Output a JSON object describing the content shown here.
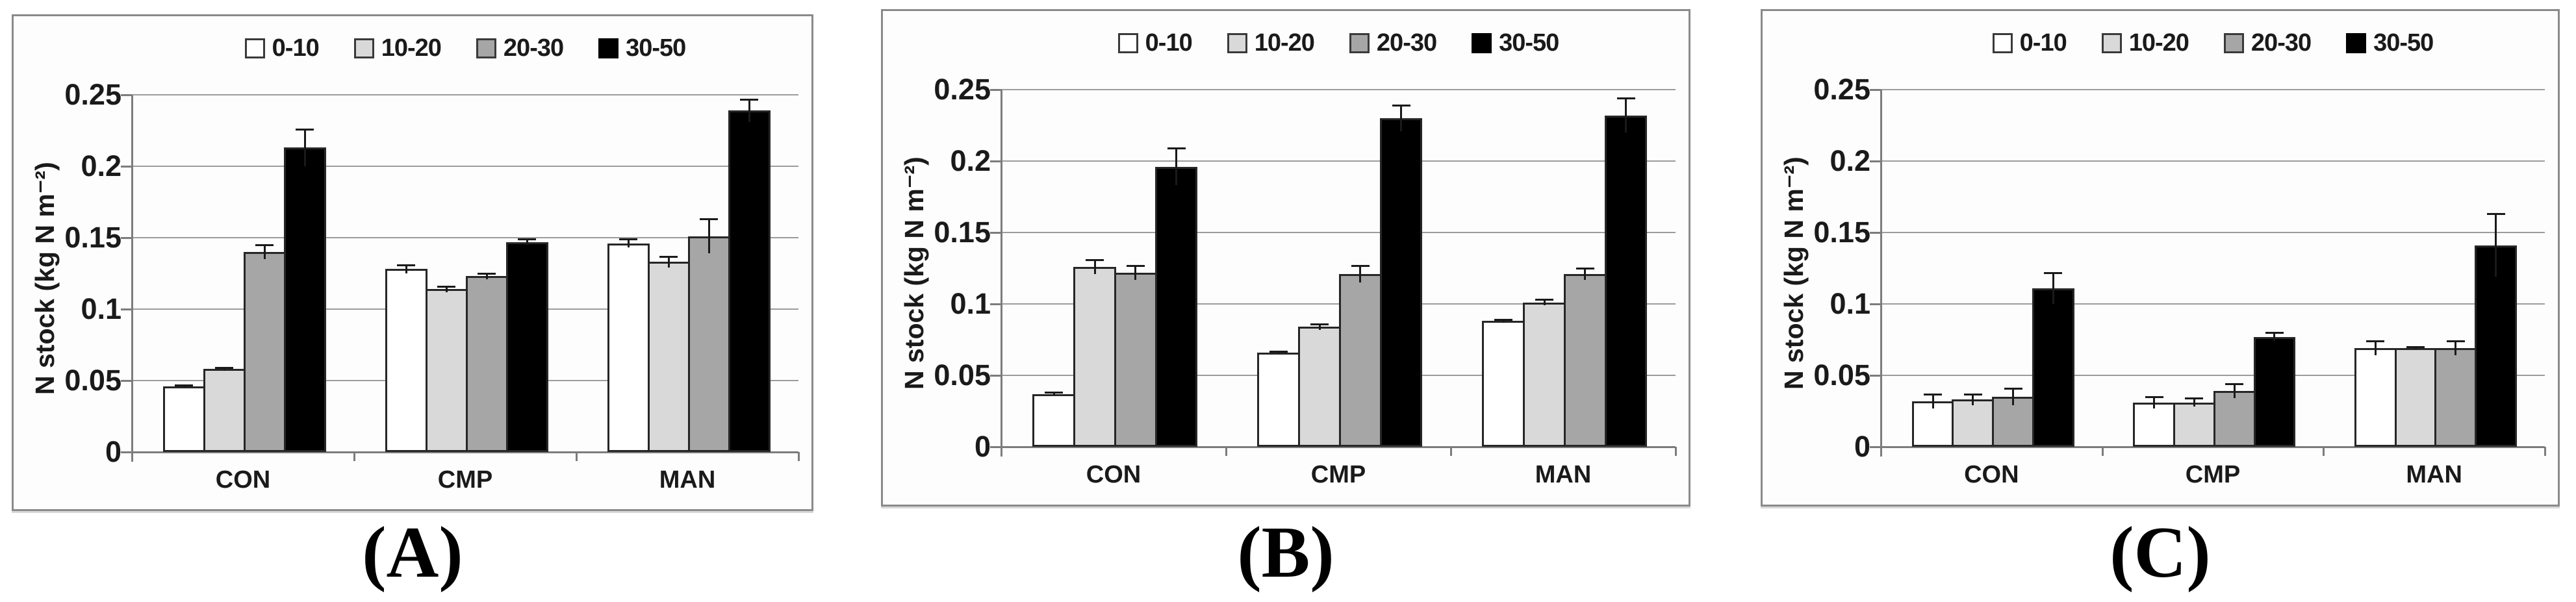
{
  "figure": {
    "background": "#ffffff",
    "text_color": "#1a1a1a",
    "panel_border_color": "#8a8a8a",
    "gridline_color": "#9c9c9c",
    "axis_color": "#7c7c7c",
    "bar_border_color": "#262626",
    "error_bar_color": "#1a1a1a"
  },
  "chart_data": [
    {
      "type": "bar",
      "panel_label": "(A)",
      "ylabel": "N stock (kg N m⁻²)",
      "categories": [
        "CON",
        "CMP",
        "MAN"
      ],
      "ylim": [
        0,
        0.25
      ],
      "ytick_values": [
        0,
        0.05,
        0.1,
        0.15,
        0.2,
        0.25
      ],
      "ytick_labels": [
        "0",
        "0.05",
        "0.1",
        "0.15",
        "0.2",
        "0.25"
      ],
      "grid": true,
      "legend_position": "top",
      "legend": [
        "0-10",
        "10-20",
        "20-30",
        "30-50"
      ],
      "series": [
        {
          "name": "0-10",
          "color": "#ffffff",
          "values": [
            0.046,
            0.128,
            0.146
          ],
          "errors": [
            0.001,
            0.003,
            0.003
          ]
        },
        {
          "name": "10-20",
          "color": "#d9d9d9",
          "values": [
            0.058,
            0.114,
            0.133
          ],
          "errors": [
            0.001,
            0.002,
            0.004
          ]
        },
        {
          "name": "20-30",
          "color": "#a6a6a6",
          "values": [
            0.14,
            0.123,
            0.151
          ],
          "errors": [
            0.005,
            0.002,
            0.012
          ]
        },
        {
          "name": "30-50",
          "color": "#000000",
          "values": [
            0.213,
            0.147,
            0.239
          ],
          "errors": [
            0.013,
            0.002,
            0.008
          ]
        }
      ]
    },
    {
      "type": "bar",
      "panel_label": "(B)",
      "ylabel": "N stock (kg N m⁻²)",
      "categories": [
        "CON",
        "CMP",
        "MAN"
      ],
      "ylim": [
        0,
        0.25
      ],
      "ytick_values": [
        0,
        0.05,
        0.1,
        0.15,
        0.2,
        0.25
      ],
      "ytick_labels": [
        "0",
        "0.05",
        "0.1",
        "0.15",
        "0.2",
        "0.25"
      ],
      "grid": true,
      "legend_position": "top",
      "legend": [
        "0-10",
        "10-20",
        "20-30",
        "30-50"
      ],
      "series": [
        {
          "name": "0-10",
          "color": "#ffffff",
          "values": [
            0.037,
            0.066,
            0.088
          ],
          "errors": [
            0.001,
            0.001,
            0.001
          ]
        },
        {
          "name": "10-20",
          "color": "#d9d9d9",
          "values": [
            0.126,
            0.084,
            0.101
          ],
          "errors": [
            0.005,
            0.002,
            0.002
          ]
        },
        {
          "name": "20-30",
          "color": "#a6a6a6",
          "values": [
            0.122,
            0.121,
            0.121
          ],
          "errors": [
            0.005,
            0.006,
            0.004
          ]
        },
        {
          "name": "30-50",
          "color": "#000000",
          "values": [
            0.196,
            0.23,
            0.232
          ],
          "errors": [
            0.013,
            0.009,
            0.012
          ]
        }
      ]
    },
    {
      "type": "bar",
      "panel_label": "(C)",
      "ylabel": "N stock (kg N m⁻²)",
      "categories": [
        "CON",
        "CMP",
        "MAN"
      ],
      "ylim": [
        0,
        0.25
      ],
      "ytick_values": [
        0,
        0.05,
        0.1,
        0.15,
        0.2,
        0.25
      ],
      "ytick_labels": [
        "0",
        "0.05",
        "0.1",
        "0.15",
        "0.2",
        "0.25"
      ],
      "grid": true,
      "legend_position": "top",
      "legend": [
        "0-10",
        "10-20",
        "20-30",
        "30-50"
      ],
      "series": [
        {
          "name": "0-10",
          "color": "#ffffff",
          "values": [
            0.032,
            0.031,
            0.069
          ],
          "errors": [
            0.005,
            0.004,
            0.005
          ]
        },
        {
          "name": "10-20",
          "color": "#d9d9d9",
          "values": [
            0.033,
            0.031,
            0.069
          ],
          "errors": [
            0.004,
            0.003,
            0.001
          ]
        },
        {
          "name": "20-30",
          "color": "#a6a6a6",
          "values": [
            0.035,
            0.039,
            0.069
          ],
          "errors": [
            0.006,
            0.005,
            0.005
          ]
        },
        {
          "name": "30-50",
          "color": "#000000",
          "values": [
            0.111,
            0.077,
            0.141
          ],
          "errors": [
            0.011,
            0.003,
            0.022
          ]
        }
      ]
    }
  ]
}
